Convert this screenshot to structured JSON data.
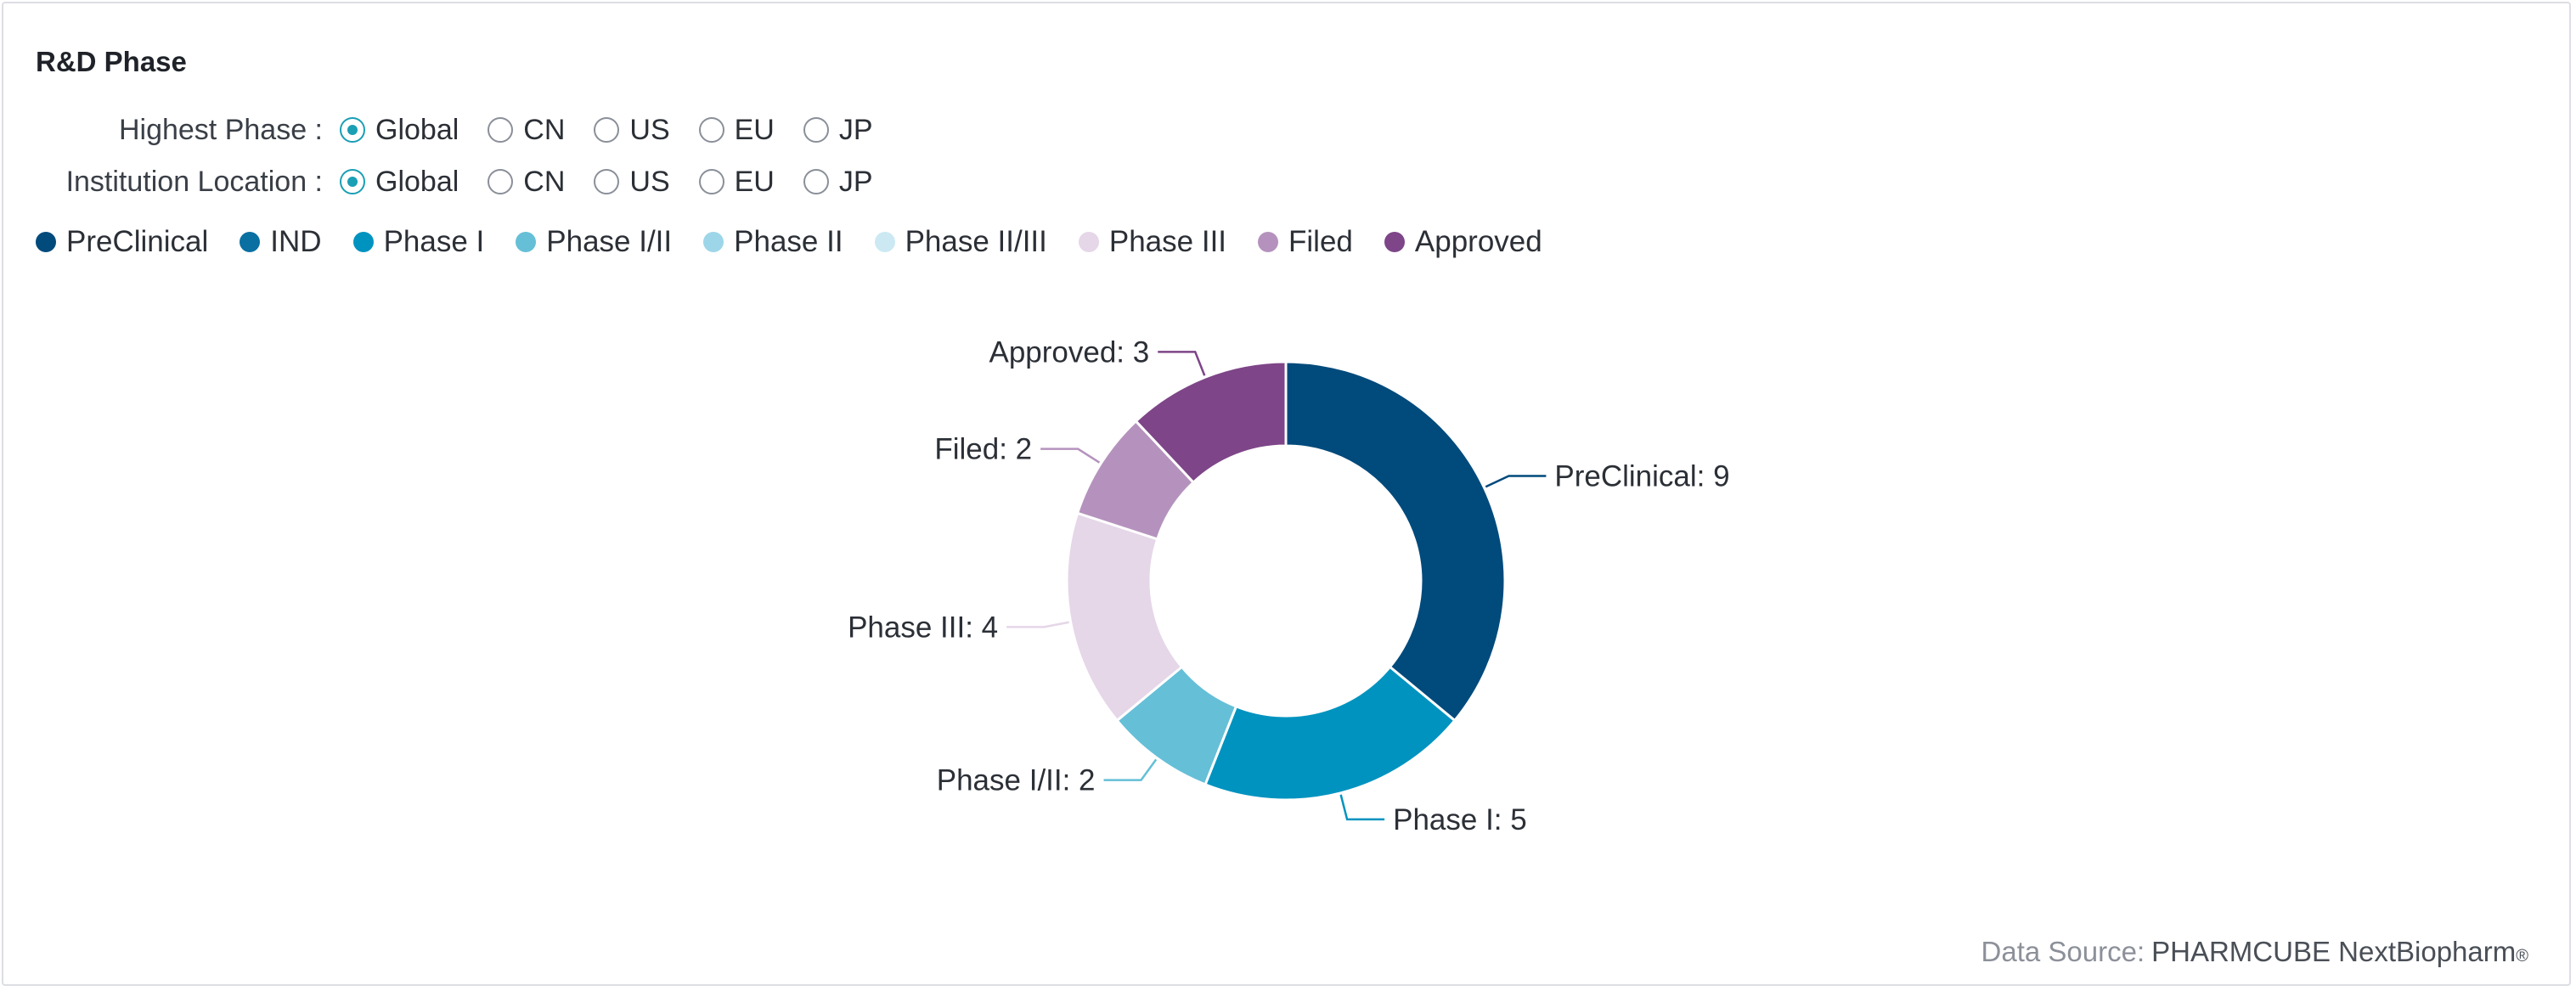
{
  "card": {
    "title": "R&D Phase"
  },
  "filters": [
    {
      "label": "Highest Phase :",
      "options": [
        "Global",
        "CN",
        "US",
        "EU",
        "JP"
      ],
      "selected": "Global"
    },
    {
      "label": "Institution Location :",
      "options": [
        "Global",
        "CN",
        "US",
        "EU",
        "JP"
      ],
      "selected": "Global"
    }
  ],
  "colors": {
    "radio_accent": "#1a9fb4"
  },
  "chart_data": {
    "type": "pie",
    "donut": true,
    "legend_placement": "top-left",
    "legend": [
      {
        "name": "PreClinical",
        "color": "#004a7c"
      },
      {
        "name": "IND",
        "color": "#0a6fa1"
      },
      {
        "name": "Phase I",
        "color": "#0093bf"
      },
      {
        "name": "Phase I/II",
        "color": "#65bfd7"
      },
      {
        "name": "Phase II",
        "color": "#9dd6e8"
      },
      {
        "name": "Phase II/III",
        "color": "#cce9f3"
      },
      {
        "name": "Phase III",
        "color": "#e5d6e8"
      },
      {
        "name": "Filed",
        "color": "#b592bd"
      },
      {
        "name": "Approved",
        "color": "#7e4588"
      }
    ],
    "slices": [
      {
        "name": "PreClinical",
        "value": 9,
        "label": "PreClinical: 9",
        "color": "#004a7c"
      },
      {
        "name": "Phase I",
        "value": 5,
        "label": "Phase I: 5",
        "color": "#0093bf"
      },
      {
        "name": "Phase I/II",
        "value": 2,
        "label": "Phase I/II: 2",
        "color": "#65bfd7"
      },
      {
        "name": "Phase III",
        "value": 4,
        "label": "Phase III: 4",
        "color": "#e5d6e8"
      },
      {
        "name": "Filed",
        "value": 2,
        "label": "Filed: 2",
        "color": "#b592bd"
      },
      {
        "name": "Approved",
        "value": 3,
        "label": "Approved: 3",
        "color": "#7e4588"
      }
    ]
  },
  "footer": {
    "source_label": "Data Source:",
    "source_value": "PHARMCUBE NextBiopharm",
    "trademark": "®"
  }
}
